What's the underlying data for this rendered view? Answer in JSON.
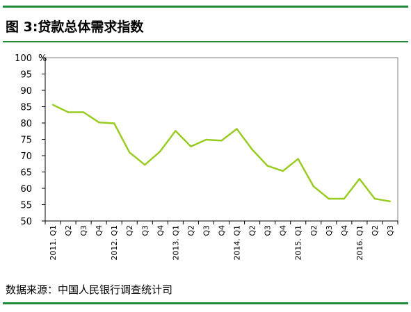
{
  "figure": {
    "title": "图 3:贷款总体需求指数",
    "source": "数据来源：中国人民银行调查统计司"
  },
  "colors": {
    "rule": "#1f8a3a",
    "line": "#99cc22",
    "axis": "#000000"
  },
  "chart_data": {
    "type": "line",
    "title": "图 3:贷款总体需求指数",
    "ylabel": "%",
    "ylim": [
      50,
      100
    ],
    "yticks": [
      50,
      55,
      60,
      65,
      70,
      75,
      80,
      85,
      90,
      95,
      100
    ],
    "grid": false,
    "legend": "none",
    "categories": [
      "2011. Q1",
      "Q2",
      "Q3",
      "Q4",
      "2012. Q1",
      "Q2",
      "Q3",
      "Q4",
      "2013. Q1",
      "Q2",
      "Q3",
      "Q4",
      "2014. Q1",
      "Q2",
      "Q3",
      "Q4",
      "2015. Q1",
      "Q2",
      "Q3",
      "Q4",
      "2016. Q1",
      "Q2",
      "Q3"
    ],
    "series": [
      {
        "values": [
          85.6,
          83.3,
          83.3,
          80.2,
          79.9,
          71.0,
          67.2,
          71.3,
          77.6,
          72.8,
          74.9,
          74.6,
          78.2,
          71.9,
          66.9,
          65.3,
          69.0,
          60.6,
          56.8,
          56.8,
          62.9,
          56.8,
          56.0
        ]
      }
    ]
  }
}
